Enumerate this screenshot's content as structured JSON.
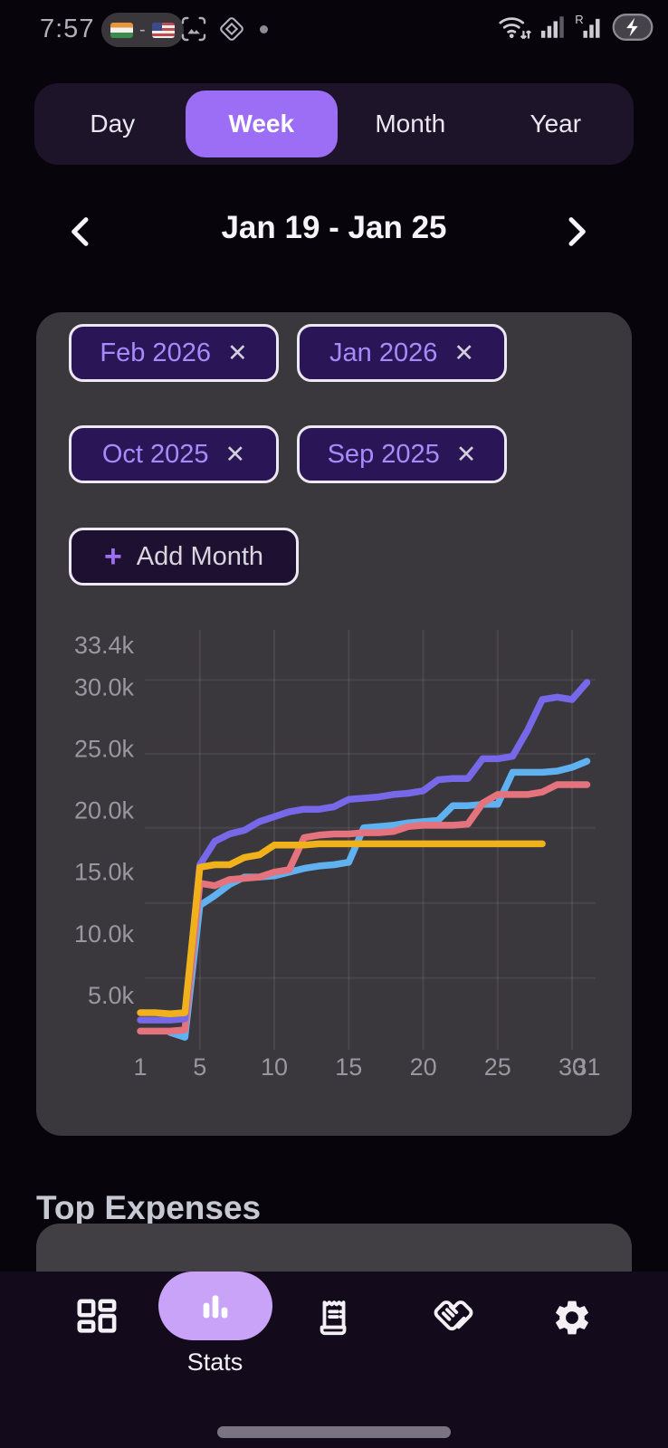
{
  "status_bar": {
    "time": "7:57",
    "sim_divider": "-",
    "icons": [
      "india-flag",
      "us-flag",
      "screenshot-icon",
      "diamond-badge-icon",
      "notification-dot",
      "wifi-icon",
      "signal-bars-icon",
      "roaming-signal-icon",
      "battery-charging-icon"
    ]
  },
  "period_tabs": {
    "items": [
      {
        "label": "Day",
        "selected": false
      },
      {
        "label": "Week",
        "selected": true
      },
      {
        "label": "Month",
        "selected": false
      },
      {
        "label": "Year",
        "selected": false
      }
    ],
    "selected_color": "#9c6df5"
  },
  "date_nav": {
    "title": "Jan 19 - Jan 25"
  },
  "filter_chips": [
    {
      "label": "Feb 2026"
    },
    {
      "label": "Jan 2026"
    },
    {
      "label": "Oct 2025"
    },
    {
      "label": "Sep 2025"
    }
  ],
  "add_month": {
    "label": "Add Month"
  },
  "icons": {
    "close": "✕",
    "plus": "+"
  },
  "chart_data": {
    "type": "line",
    "title": "",
    "xlabel": "",
    "ylabel": "",
    "legend": "none (month filter chips above)",
    "grid": true,
    "xlim": [
      1,
      31
    ],
    "ylim": [
      0,
      34.5
    ],
    "xticks": [
      1,
      5,
      10,
      15,
      20,
      25,
      30,
      31
    ],
    "yticks": [
      {
        "value": 33.4,
        "label": "33.4k"
      },
      {
        "value": 30.0,
        "label": "30.0k"
      },
      {
        "value": 25.0,
        "label": "25.0k"
      },
      {
        "value": 20.0,
        "label": "20.0k"
      },
      {
        "value": 15.0,
        "label": "15.0k"
      },
      {
        "value": 10.0,
        "label": "10.0k"
      },
      {
        "value": 5.0,
        "label": "5.0k"
      }
    ],
    "gridline_vertical_days": [
      5,
      10,
      15,
      20,
      25,
      30
    ],
    "gridline_horizontal_values": [
      30.6,
      24.6,
      18.6,
      12.5,
      6.4
    ],
    "units": "thousands (cumulative spend per day of month)",
    "series": [
      {
        "name": "blue-line",
        "color": "#5fb2ef",
        "x": [
          3,
          4,
          5,
          6,
          7,
          8,
          9,
          10,
          11,
          12,
          13,
          14,
          15,
          16,
          17,
          18,
          19,
          20,
          21,
          22,
          23,
          24,
          25,
          26,
          27,
          28,
          29,
          30,
          31
        ],
        "y": [
          2.0,
          1.6,
          12.3,
          13.1,
          14.0,
          14.6,
          14.6,
          14.7,
          15.0,
          15.3,
          15.5,
          15.6,
          15.8,
          18.6,
          18.7,
          18.8,
          19.0,
          19.1,
          19.2,
          20.4,
          20.4,
          20.5,
          20.5,
          23.1,
          23.1,
          23.1,
          23.2,
          23.5,
          24.0
        ]
      },
      {
        "name": "red-line",
        "color": "#e5737e",
        "x": [
          1,
          2,
          3,
          4,
          5,
          6,
          7,
          8,
          9,
          10,
          11,
          12,
          13,
          14,
          15,
          16,
          17,
          18,
          19,
          20,
          21,
          22,
          23,
          24,
          25,
          26,
          27,
          28,
          29,
          30,
          31
        ],
        "y": [
          2.1,
          2.1,
          2.1,
          2.2,
          14.1,
          13.9,
          14.4,
          14.5,
          14.6,
          15.0,
          15.2,
          17.8,
          18.0,
          18.1,
          18.1,
          18.2,
          18.2,
          18.3,
          18.7,
          18.8,
          18.8,
          18.8,
          18.9,
          20.6,
          21.3,
          21.3,
          21.3,
          21.5,
          22.1,
          22.1,
          22.1
        ]
      },
      {
        "name": "violet-line",
        "color": "#7668e8",
        "x": [
          1,
          2,
          3,
          4,
          5,
          6,
          7,
          8,
          9,
          10,
          11,
          12,
          13,
          14,
          15,
          16,
          17,
          18,
          19,
          20,
          21,
          22,
          23,
          24,
          25,
          26,
          27,
          28,
          29,
          30,
          31
        ],
        "y": [
          3.0,
          3.0,
          3.0,
          3.1,
          15.6,
          17.5,
          18.1,
          18.4,
          19.1,
          19.5,
          19.9,
          20.1,
          20.1,
          20.3,
          20.9,
          21.0,
          21.1,
          21.3,
          21.4,
          21.6,
          22.5,
          22.6,
          22.6,
          24.2,
          24.2,
          24.4,
          26.5,
          29.0,
          29.2,
          29.0,
          30.4
        ]
      },
      {
        "name": "yellow-line",
        "color": "#f0b11a",
        "x": [
          1,
          2,
          3,
          4,
          5,
          6,
          7,
          8,
          9,
          10,
          11,
          12,
          13,
          14,
          15,
          16,
          17,
          18,
          19,
          20,
          21,
          22,
          23,
          24,
          25,
          26,
          27,
          28
        ],
        "y": [
          3.6,
          3.6,
          3.5,
          3.6,
          15.4,
          15.6,
          15.6,
          16.2,
          16.4,
          17.2,
          17.2,
          17.2,
          17.3,
          17.3,
          17.3,
          17.3,
          17.3,
          17.3,
          17.3,
          17.3,
          17.3,
          17.3,
          17.3,
          17.3,
          17.3,
          17.3,
          17.3,
          17.3
        ]
      }
    ]
  },
  "sections": {
    "top_expenses": "Top Expenses"
  },
  "bottom_nav": {
    "items": [
      {
        "name": "dashboard"
      },
      {
        "name": "stats",
        "label": "Stats",
        "active": true
      },
      {
        "name": "receipts"
      },
      {
        "name": "handshake"
      },
      {
        "name": "settings"
      }
    ],
    "active_pill_color": "#c9a3f7"
  },
  "colors": {
    "accent_purple": "#9c6df5",
    "chip_text": "#a78bfa",
    "card_bg": "#3a373d",
    "nav_bg": "#130b1c",
    "axis_text": "#9b97a0"
  }
}
